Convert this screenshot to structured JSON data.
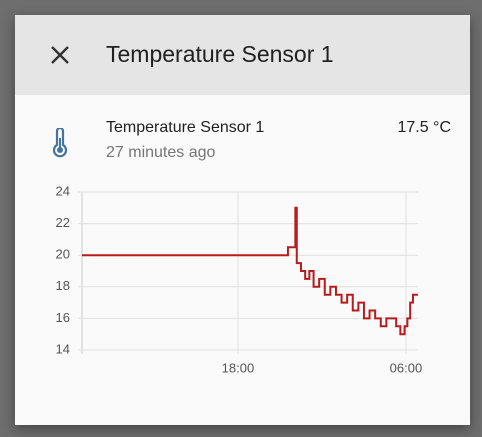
{
  "dialog": {
    "title": "Temperature Sensor 1",
    "entity_name": "Temperature Sensor 1",
    "state": "17.5 °C",
    "last_changed": "27 minutes ago"
  },
  "chart_data": {
    "type": "line",
    "step": true,
    "color": "#b71c1c",
    "x": [
      6.86,
      21.57,
      22.1,
      22.2,
      22.5,
      22.8,
      23.1,
      23.4,
      23.8,
      24.2,
      24.6,
      25.0,
      25.4,
      25.8,
      26.2,
      26.6,
      27.0,
      27.4,
      27.8,
      28.2,
      28.6,
      29.0,
      29.3,
      29.6,
      29.9,
      30.1,
      30.3,
      30.5,
      30.86
    ],
    "values": [
      20,
      20.5,
      23,
      19.5,
      19,
      18.5,
      19,
      18,
      18.5,
      17.5,
      18,
      17.5,
      17,
      17.5,
      16.5,
      17,
      16,
      16.5,
      16,
      15.5,
      16,
      16,
      15.5,
      15,
      15.5,
      16,
      17,
      17.5,
      17.5
    ],
    "xlim": [
      6.86,
      30.86
    ],
    "xticks": [
      {
        "value": 18,
        "label": "18:00"
      },
      {
        "value": 30,
        "label": "06:00"
      }
    ],
    "ylim": [
      14,
      24
    ],
    "yticks": [
      14,
      16,
      18,
      20,
      22,
      24
    ],
    "grid": true
  }
}
